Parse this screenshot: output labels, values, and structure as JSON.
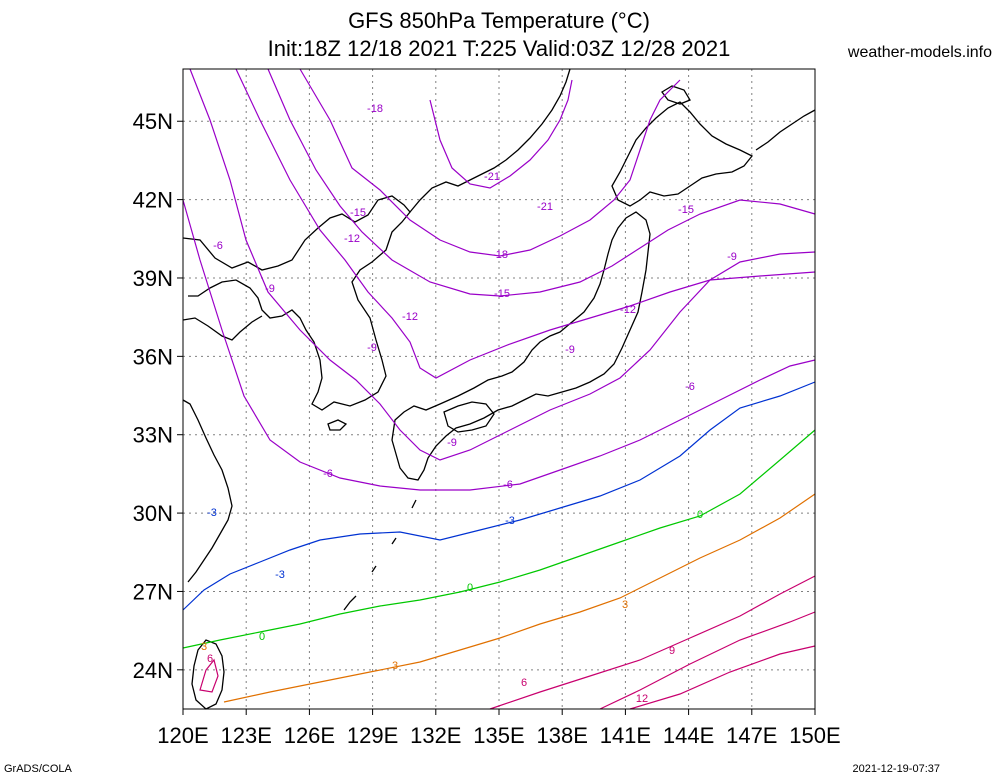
{
  "header": {
    "title_line1": "GFS 850hPa Temperature (°C)",
    "title_line2": "Init:18Z 12/18 2021 T:225 Valid:03Z 12/28 2021",
    "site": "weather-models.info"
  },
  "footer": {
    "left": "GrADS/COLA",
    "right": "2021-12-19-07:37"
  },
  "map": {
    "lon_range": [
      120,
      150
    ],
    "lat_range": [
      22.5,
      47
    ],
    "lat_ticks": [
      "24N",
      "27N",
      "30N",
      "33N",
      "36N",
      "39N",
      "42N",
      "45N"
    ],
    "lon_ticks": [
      "120E",
      "123E",
      "126E",
      "129E",
      "132E",
      "135E",
      "138E",
      "141E",
      "144E",
      "147E",
      "150E"
    ],
    "grid": true,
    "coastline_color": "#000000"
  },
  "contours": [
    {
      "label": "-21",
      "value": -21,
      "color": "#9a00c8"
    },
    {
      "label": "-18",
      "value": -18,
      "color": "#9a00c8"
    },
    {
      "label": "-15",
      "value": -15,
      "color": "#9a00c8"
    },
    {
      "label": "-12",
      "value": -12,
      "color": "#9a00c8"
    },
    {
      "label": "-9",
      "value": -9,
      "color": "#9a00c8"
    },
    {
      "label": "-6",
      "value": -6,
      "color": "#9a00c8"
    },
    {
      "label": "-3",
      "value": -3,
      "color": "#0032d2"
    },
    {
      "label": "0",
      "value": 0,
      "color": "#00c800"
    },
    {
      "label": "3",
      "value": 3,
      "color": "#e07000"
    },
    {
      "label": "6",
      "value": 6,
      "color": "#c8006e"
    },
    {
      "label": "9",
      "value": 9,
      "color": "#c8006e"
    },
    {
      "label": "12",
      "value": 12,
      "color": "#c8006e"
    }
  ]
}
